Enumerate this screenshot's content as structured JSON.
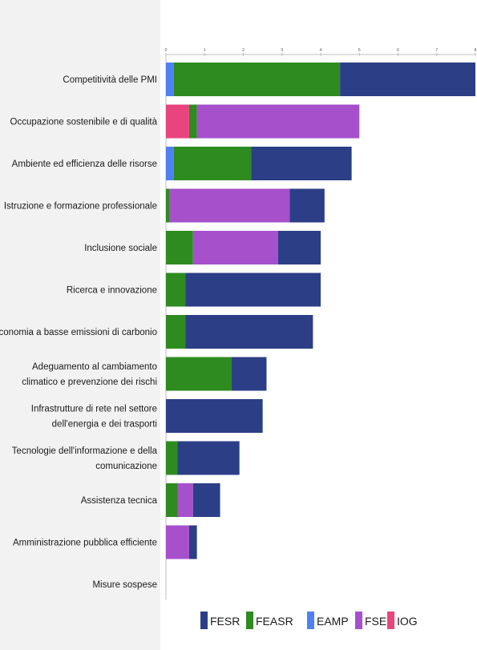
{
  "chart_data": {
    "type": "bar",
    "orientation": "horizontal",
    "stacked": true,
    "title": "",
    "xlabel": "",
    "ylabel": "",
    "xlim": [
      0,
      8
    ],
    "x_ticks": [
      "0",
      "1",
      "2",
      "3",
      "4",
      "5",
      "6",
      "7",
      "8"
    ],
    "grid": false,
    "legend_position": "bottom",
    "categories": [
      [
        "Competitività delle PMI"
      ],
      [
        "Occupazione sostenibile e di qualità"
      ],
      [
        "Ambiente ed efficienza delle risorse"
      ],
      [
        "Istruzione e formazione professionale"
      ],
      [
        "Inclusione sociale"
      ],
      [
        "Ricerca e innovazione"
      ],
      [
        "Economia a basse emissioni di carbonio"
      ],
      [
        "Adeguamento al cambiamento",
        "climatico e prevenzione dei rischi"
      ],
      [
        "Infrastrutture di rete nel settore",
        "dell'energia e dei trasporti"
      ],
      [
        "Tecnologie dell'informazione e della",
        "comunicazione"
      ],
      [
        "Assistenza tecnica"
      ],
      [
        "Amministrazione pubblica efficiente"
      ],
      [
        "Misure sospese"
      ]
    ],
    "series": [
      {
        "name": "EAMP",
        "color": "#4f81f5",
        "values": [
          0.2,
          0.0,
          0.2,
          0.0,
          0.0,
          0.0,
          0.0,
          0.0,
          0.0,
          0.0,
          0.0,
          0.0,
          0.0
        ]
      },
      {
        "name": "IOG",
        "color": "#e8457f",
        "values": [
          0.0,
          0.6,
          0.0,
          0.0,
          0.0,
          0.0,
          0.0,
          0.0,
          0.0,
          0.0,
          0.0,
          0.0,
          0.0
        ]
      },
      {
        "name": "FEASR",
        "color": "#2e8b1f",
        "values": [
          4.3,
          0.2,
          2.0,
          0.1,
          0.7,
          0.5,
          0.5,
          1.7,
          0.0,
          0.3,
          0.3,
          0.0,
          0.0
        ]
      },
      {
        "name": "FSE",
        "color": "#a650cc",
        "values": [
          0.0,
          4.2,
          0.0,
          3.1,
          2.2,
          0.0,
          0.0,
          0.0,
          0.0,
          0.0,
          0.4,
          0.6,
          0.0
        ]
      },
      {
        "name": "FESR",
        "color": "#2c3e86",
        "values": [
          3.5,
          0.0,
          2.6,
          0.9,
          1.1,
          3.5,
          3.3,
          0.9,
          2.5,
          1.6,
          0.7,
          0.2,
          0.0
        ]
      }
    ],
    "legend_order": [
      "FESR",
      "FEASR",
      "EAMP",
      "FSE",
      "IOG"
    ]
  }
}
